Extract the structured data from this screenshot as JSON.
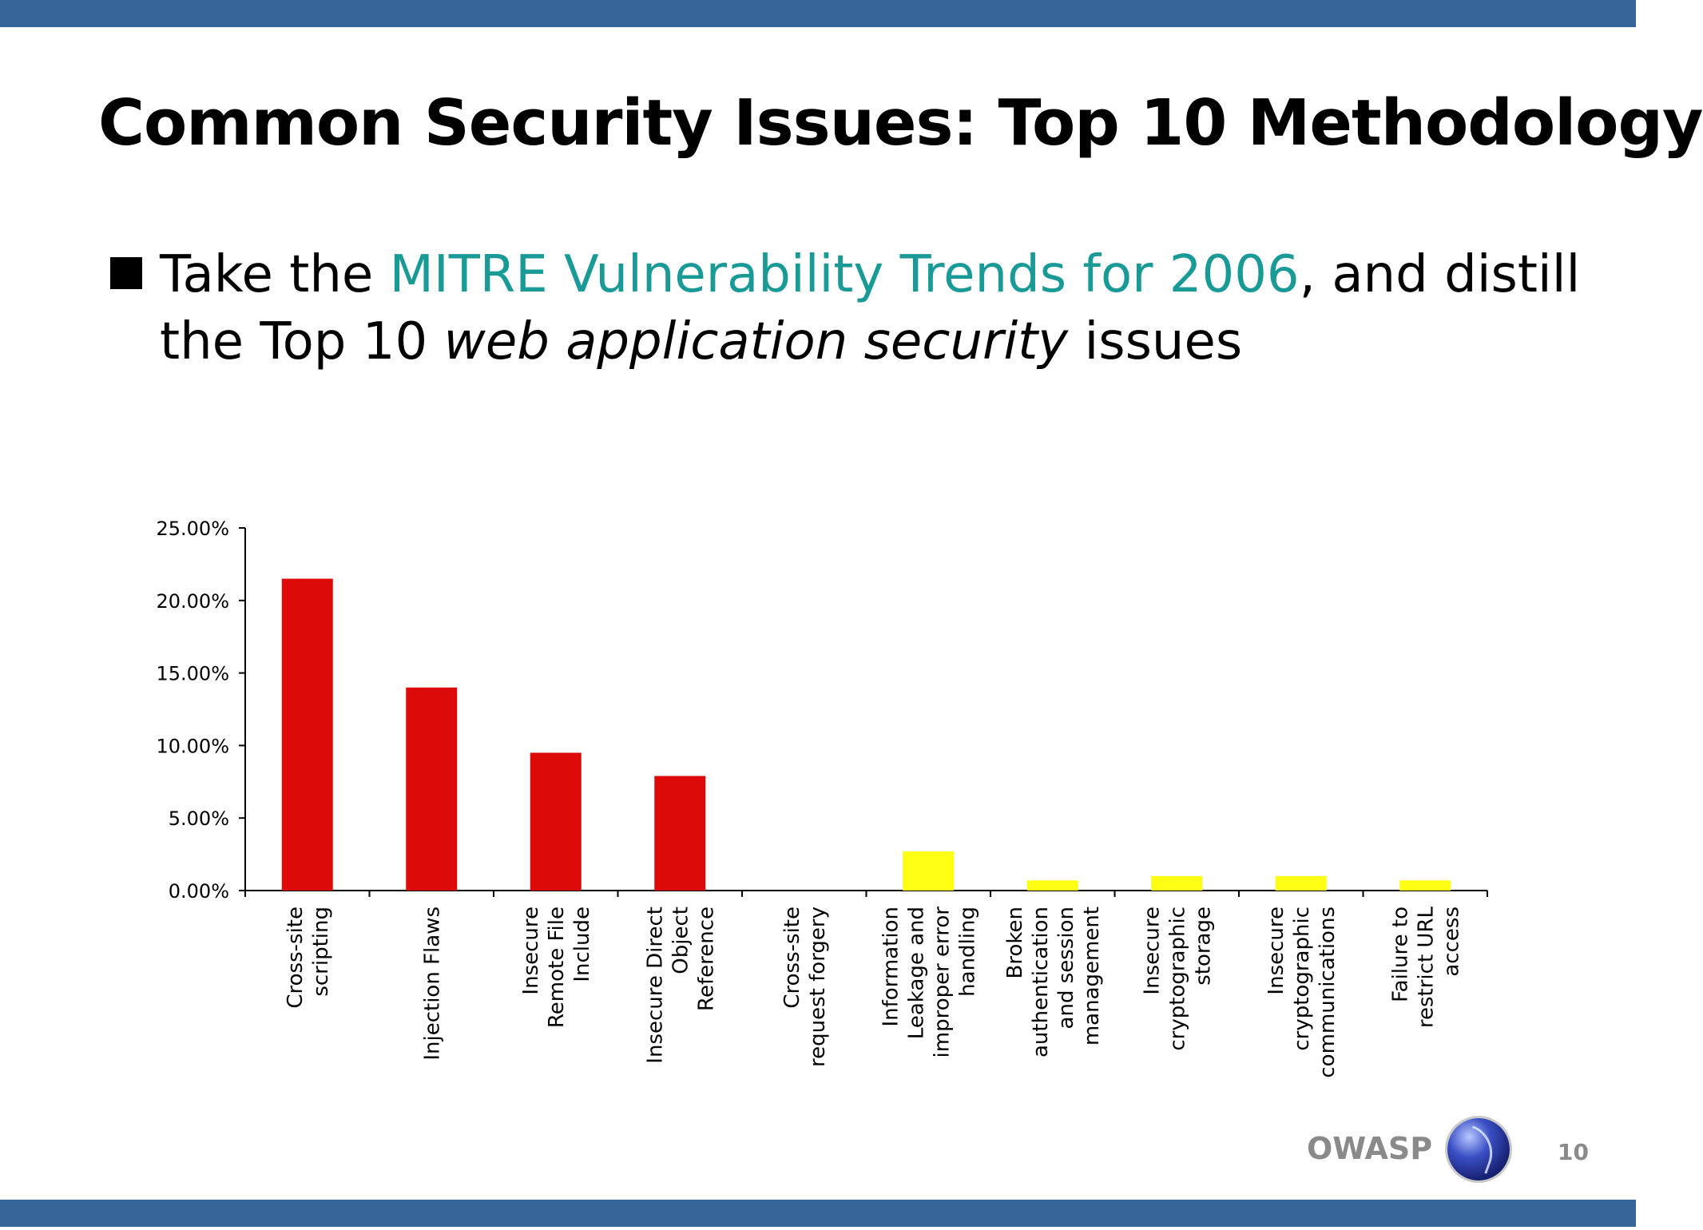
{
  "slide": {
    "title": "Common Security Issues: Top 10 Methodology",
    "bullet": {
      "prefix": "Take the ",
      "link": "MITRE Vulnerability Trends for 2006",
      "middle": ", and distill",
      "line2_prefix": "the Top 10 ",
      "line2_emphasis": "web application security",
      "line2_suffix": " issues"
    },
    "footer": {
      "brand": "OWASP",
      "logo_icon": "owasp-globe-icon",
      "page_number": "10"
    },
    "colors": {
      "frame": "#37659a",
      "link": "#1a9a96"
    }
  },
  "chart_data": {
    "type": "bar",
    "categories": [
      [
        "Cross-site",
        "scripting"
      ],
      [
        "Injection Flaws"
      ],
      [
        "Insecure",
        "Remote File",
        "Include"
      ],
      [
        "Insecure Direct",
        "Object",
        "Reference"
      ],
      [
        "Cross-site",
        "request forgery"
      ],
      [
        "Information",
        "Leakage and",
        "improper error",
        "handling"
      ],
      [
        "Broken",
        "authentication",
        "and session",
        "management"
      ],
      [
        "Insecure",
        "cryptographic",
        "storage"
      ],
      [
        "Insecure",
        "cryptographic",
        "communications"
      ],
      [
        "Failure to",
        "restrict URL",
        "access"
      ]
    ],
    "values": [
      21.5,
      14.0,
      9.5,
      7.9,
      0.0,
      2.7,
      0.7,
      1.0,
      1.0,
      0.7
    ],
    "colors": [
      "#dd0a0a",
      "#dd0a0a",
      "#dd0a0a",
      "#dd0a0a",
      "#dd0a0a",
      "#ffff14",
      "#ffff14",
      "#ffff14",
      "#ffff14",
      "#ffff14"
    ],
    "yticks": [
      "0.00%",
      "5.00%",
      "10.00%",
      "15.00%",
      "20.00%",
      "25.00%"
    ],
    "ylim": [
      0,
      25
    ],
    "title": "",
    "xlabel": "",
    "ylabel": "",
    "grid": false,
    "legend": "none"
  }
}
